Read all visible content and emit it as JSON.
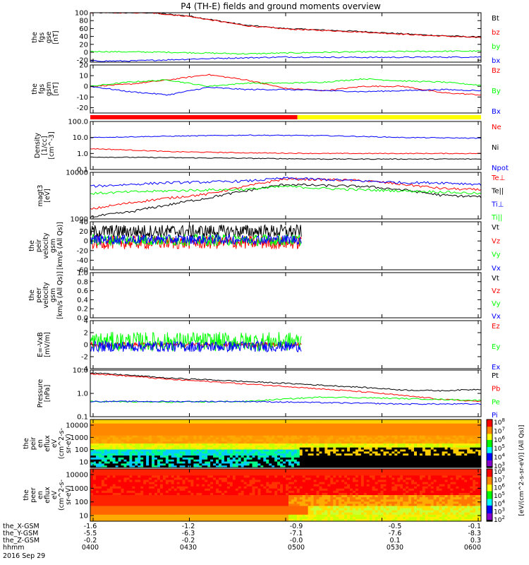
{
  "title": "P4 (TH-E) fields and ground moments overview",
  "colors": {
    "black": "#000000",
    "red": "#ff0000",
    "green": "#00ff00",
    "blue": "#0000ff",
    "yellow": "#ffff00"
  },
  "chart_data": [
    {
      "type": "line",
      "id": "fgs_gse",
      "ylabel": [
        "the",
        "fgs",
        "gse",
        "[nT]"
      ],
      "yticks": [
        "100",
        "80",
        "60",
        "40",
        "20",
        "0",
        "-20"
      ],
      "ylim": [
        -25,
        100
      ],
      "series": [
        {
          "name": "Bt",
          "color": "black",
          "x": [
            0,
            0.15,
            0.25,
            0.4,
            0.5,
            0.7,
            0.85,
            1.0
          ],
          "y": [
            100,
            100,
            92,
            68,
            60,
            52,
            44,
            38
          ]
        },
        {
          "name": "bz",
          "color": "red",
          "x": [
            0,
            0.15,
            0.25,
            0.4,
            0.5,
            0.7,
            0.85,
            1.0
          ],
          "y": [
            100,
            100,
            91,
            67,
            59,
            51,
            43,
            37
          ]
        },
        {
          "name": "by",
          "color": "green",
          "x": [
            0,
            0.2,
            0.4,
            0.5,
            0.6,
            0.8,
            1.0
          ],
          "y": [
            2,
            0,
            -4,
            -2,
            0,
            2,
            3
          ]
        },
        {
          "name": "bx",
          "color": "blue",
          "x": [
            0,
            0.1,
            0.3,
            0.5,
            0.7,
            1.0
          ],
          "y": [
            -22,
            -22,
            -16,
            -12,
            -13,
            -12
          ]
        }
      ]
    },
    {
      "type": "line",
      "id": "fgs_gsm",
      "ylabel": [
        "the",
        "fgs",
        "gsm",
        "[nT]"
      ],
      "yticks": [
        "20",
        "10",
        "0",
        "-10",
        "-20"
      ],
      "ylim": [
        -25,
        20
      ],
      "series": [
        {
          "name": "Bz",
          "color": "red",
          "x": [
            0,
            0.1,
            0.2,
            0.3,
            0.4,
            0.5,
            0.6,
            0.7,
            0.8,
            0.9,
            1.0
          ],
          "y": [
            0,
            2,
            6,
            11,
            6,
            -2,
            -4,
            0,
            0,
            -6,
            -8
          ]
        },
        {
          "name": "By",
          "color": "green",
          "x": [
            0,
            0.1,
            0.2,
            0.3,
            0.4,
            0.5,
            0.6,
            0.7,
            0.8,
            0.9,
            1.0
          ],
          "y": [
            0,
            4,
            6,
            0,
            3,
            3,
            4,
            7,
            5,
            4,
            1
          ]
        },
        {
          "name": "Bx",
          "color": "blue",
          "x": [
            0,
            0.1,
            0.2,
            0.3,
            0.4,
            0.5,
            0.6,
            0.7,
            0.8,
            0.9,
            1.0
          ],
          "y": [
            0,
            -5,
            -8,
            -1,
            -3,
            -3,
            -4,
            -5,
            -4,
            -3,
            -4
          ]
        }
      ]
    },
    {
      "type": "line",
      "id": "density",
      "scale": "log",
      "ylabel": [
        "Density",
        "[1/cc]",
        "[cm^-3]"
      ],
      "yticks": [
        "100.0",
        "10.0",
        "1.0",
        "0.1"
      ],
      "ylim": [
        0.1,
        100
      ],
      "series": [
        {
          "name": "Ne",
          "color": "red",
          "x": [
            0,
            0.2,
            0.4,
            0.6,
            0.8,
            1.0
          ],
          "y": [
            2.0,
            1.3,
            1.1,
            1.0,
            1.0,
            1.0
          ]
        },
        {
          "name": "Ni",
          "color": "black",
          "x": [
            0,
            0.2,
            0.4,
            0.6,
            0.8,
            1.0
          ],
          "y": [
            0.6,
            0.55,
            0.5,
            0.45,
            0.45,
            0.45
          ]
        },
        {
          "name": "Npot",
          "color": "blue",
          "x": [
            0,
            0.2,
            0.4,
            0.6,
            0.8,
            1.0
          ],
          "y": [
            10,
            12,
            14,
            13,
            10,
            9
          ]
        }
      ]
    },
    {
      "type": "line",
      "id": "temperature",
      "scale": "log",
      "ylabel": [
        "magt3",
        "[eV]"
      ],
      "yticks": [
        "10000",
        "1000"
      ],
      "ylim": [
        1000,
        10000
      ],
      "series": [
        {
          "name": "Te⊥",
          "color": "red",
          "x": [
            0,
            0.1,
            0.2,
            0.3,
            0.4,
            0.5,
            0.6,
            0.7,
            0.8,
            0.9,
            1.0
          ],
          "y": [
            1600,
            2200,
            2800,
            3400,
            5000,
            7200,
            7000,
            6600,
            5500,
            4500,
            4200
          ]
        },
        {
          "name": "Te||",
          "color": "black",
          "x": [
            0,
            0.1,
            0.2,
            0.3,
            0.4,
            0.5,
            0.6,
            0.7,
            0.8,
            0.9,
            1.0
          ],
          "y": [
            1100,
            1400,
            2000,
            2800,
            4000,
            5500,
            5200,
            5000,
            4200,
            3200,
            3000
          ]
        },
        {
          "name": "Ti⊥",
          "color": "blue",
          "x": [
            0,
            0.1,
            0.2,
            0.3,
            0.4,
            0.5,
            0.6,
            0.7,
            0.8,
            0.9,
            1.0
          ],
          "y": [
            5000,
            5500,
            6000,
            6200,
            6500,
            7500,
            7000,
            6500,
            6000,
            6000,
            5500
          ]
        },
        {
          "name": "Ti||",
          "color": "green",
          "x": [
            0,
            0.1,
            0.2,
            0.3,
            0.4,
            0.5,
            0.6,
            0.7,
            0.8,
            0.9,
            1.0
          ],
          "y": [
            3500,
            3800,
            4000,
            4200,
            4300,
            5000,
            4500,
            4200,
            4000,
            3800,
            3500
          ]
        }
      ]
    },
    {
      "type": "line",
      "id": "peir_velocity",
      "ylabel": [
        "the",
        "peir",
        "velocity",
        "gsm",
        "[km/s (All Qs)]"
      ],
      "yticks": [
        "40",
        "20",
        "0",
        "-20",
        "-40",
        "-60"
      ],
      "ylim": [
        -60,
        40
      ],
      "x_end": 0.54,
      "series": [
        {
          "name": "Vt",
          "color": "black",
          "center": 20,
          "amp": 14
        },
        {
          "name": "Vz",
          "color": "red",
          "center": -3,
          "amp": 14
        },
        {
          "name": "Vy",
          "color": "green",
          "center": 2,
          "amp": 12
        },
        {
          "name": "Vx",
          "color": "blue",
          "center": 3,
          "amp": 10
        }
      ]
    },
    {
      "type": "line",
      "id": "peer_velocity",
      "ylabel": [
        "the",
        "peer",
        "velocity",
        "gsm",
        "[km/s (All Qs)]"
      ],
      "yticks": [
        "1.0",
        "0.8",
        "0.6",
        "0.4",
        "0.2",
        "0.0"
      ],
      "ylim": [
        0,
        1
      ],
      "series": [
        {
          "name": "Vt",
          "color": "black"
        },
        {
          "name": "Vz",
          "color": "red"
        },
        {
          "name": "Vy",
          "color": "green"
        },
        {
          "name": "Vx",
          "color": "blue"
        }
      ]
    },
    {
      "type": "line",
      "id": "e_field",
      "ylabel": [
        "E=-VxB",
        "[mV/m]"
      ],
      "yticks": [
        "4",
        "2",
        "0",
        "-2",
        "-4"
      ],
      "ylim": [
        -4,
        4
      ],
      "x_end": 0.54,
      "series": [
        {
          "name": "Ez",
          "color": "red",
          "center": 0,
          "amp": 0.4
        },
        {
          "name": "Ey",
          "color": "green",
          "center": 0.5,
          "amp": 1.6
        },
        {
          "name": "Ex",
          "color": "blue",
          "center": -0.3,
          "amp": 0.9
        }
      ]
    },
    {
      "type": "line",
      "id": "pressure",
      "scale": "log",
      "ylabel": [
        "Pressure",
        "[nPa]"
      ],
      "yticks": [
        "10.0",
        "1.0",
        "0.1"
      ],
      "ylim": [
        0.1,
        10
      ],
      "series": [
        {
          "name": "Pt",
          "color": "black",
          "x": [
            0,
            0.2,
            0.4,
            0.6,
            0.8,
            0.9,
            1.0
          ],
          "y": [
            7.5,
            4.5,
            3.2,
            2.2,
            1.4,
            1.3,
            1.5
          ]
        },
        {
          "name": "Pb",
          "color": "red",
          "x": [
            0,
            0.2,
            0.4,
            0.6,
            0.8,
            0.9,
            1.0
          ],
          "y": [
            7.0,
            4.0,
            2.5,
            1.5,
            0.8,
            0.55,
            0.45
          ]
        },
        {
          "name": "Pe",
          "color": "green",
          "x": [
            0,
            0.2,
            0.4,
            0.6,
            0.8,
            1.0
          ],
          "y": [
            0.45,
            0.42,
            0.45,
            0.7,
            0.6,
            0.5
          ]
        },
        {
          "name": "Pi",
          "color": "blue",
          "x": [
            0,
            0.2,
            0.4,
            0.6,
            0.8,
            1.0
          ],
          "y": [
            0.45,
            0.45,
            0.45,
            0.4,
            0.35,
            0.35
          ]
        }
      ]
    },
    {
      "type": "heatmap",
      "id": "peir_eflux",
      "ylabel": [
        "the",
        "peir",
        "en",
        "eflux",
        "eV",
        "(cm^2-s-",
        "sr-eV)"
      ],
      "yticks": [
        "10000",
        "1000",
        "100",
        "10"
      ]
    },
    {
      "type": "heatmap",
      "id": "peer_eflux",
      "ylabel": [
        "the",
        "peer",
        "en",
        "eflux",
        "eV",
        "(cm^2-s-",
        "sr-eV)"
      ],
      "yticks": [
        "10000",
        "1000",
        "100",
        "10"
      ]
    }
  ],
  "colorbar": {
    "labels": [
      "10^8",
      "10^7",
      "10^6",
      "10^5",
      "10^4",
      "10^3",
      "10^2"
    ],
    "upper_labels": [
      "10^8",
      "10^7",
      "10^6",
      "10^5",
      "10^4",
      "10^3"
    ],
    "title": "[eV/(cm^2-s-sr-eV)] (All Qs)]"
  },
  "mode_bar": {
    "red_fraction": 0.53,
    "colors": [
      "red",
      "yellow"
    ]
  },
  "x_axis": {
    "rows": [
      {
        "label": "the_X-GSM",
        "values": [
          "-1.6",
          "-1.2",
          "-0.9",
          "-0.5",
          "-0.1"
        ]
      },
      {
        "label": "the_Y-GSM",
        "values": [
          "-5.5",
          "-6.3",
          "-7.1",
          "-7.6",
          "-8.3"
        ]
      },
      {
        "label": "the_Z-GSM",
        "values": [
          "-0.2",
          "-0.2",
          "-0.0",
          "0.1",
          "0.3"
        ]
      },
      {
        "label": "hhmm",
        "values": [
          "0400",
          "0430",
          "0500",
          "0530",
          "0600"
        ]
      }
    ],
    "date": "2016 Sep 29"
  }
}
